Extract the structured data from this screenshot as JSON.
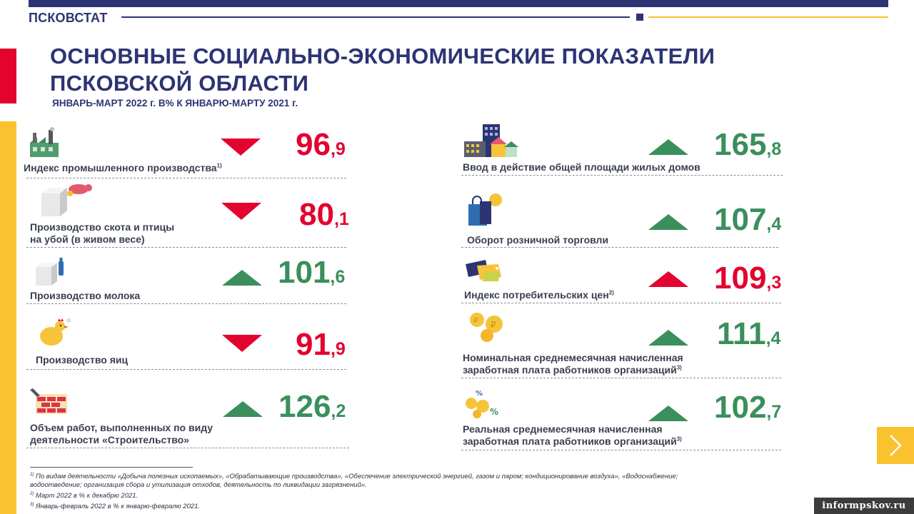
{
  "header": {
    "brand": "ПСКОВСТАТ",
    "title_line1": "ОСНОВНЫЕ  СОЦИАЛЬНО-ЭКОНОМИЧЕСКИЕ  ПОКАЗАТЕЛИ",
    "title_line2": "ПСКОВСКОЙ ОБЛАСТИ",
    "subtitle": "ЯНВАРЬ-МАРТ 2022 г.   В% К  ЯНВАРЮ-МАРТУ 2021 г."
  },
  "colors": {
    "navy": "#2d3474",
    "red": "#e2032f",
    "green": "#3a8f5c",
    "yellow": "#f9c22e"
  },
  "left": [
    {
      "icon": "factory-icon",
      "line1": "Индекс промышленного производства",
      "line2": "",
      "note": "1)",
      "int": "96",
      "dec": ",9",
      "trend": "down",
      "color": "red"
    },
    {
      "icon": "livestock-icon",
      "line1": "Производство скота и птицы",
      "line2": "на убой (в живом весе)",
      "note": "",
      "int": "80",
      "dec": ",1",
      "trend": "down",
      "color": "red"
    },
    {
      "icon": "milk-icon",
      "line1": "Производство молока",
      "line2": "",
      "note": "",
      "int": "101",
      "dec": ",6",
      "trend": "up",
      "color": "green"
    },
    {
      "icon": "hen-icon",
      "line1": "Производство яиц",
      "line2": "",
      "note": "",
      "int": "91",
      "dec": ",9",
      "trend": "down",
      "color": "red"
    },
    {
      "icon": "bricks-icon",
      "line1": "Объем работ, выполненных по виду",
      "line2": "деятельности «Строительство»",
      "note": "",
      "int": "126",
      "dec": ",2",
      "trend": "up",
      "color": "green"
    }
  ],
  "right": [
    {
      "icon": "houses-icon",
      "line1": "Ввод в действие общей площади жилых домов",
      "line2": "",
      "note": "",
      "int": "165",
      "dec": ",8",
      "trend": "up",
      "color": "green"
    },
    {
      "icon": "shopping-icon",
      "line1": "Оборот розничной торговли",
      "line2": "",
      "note": "",
      "int": "107",
      "dec": ",4",
      "trend": "up",
      "color": "green"
    },
    {
      "icon": "price-tags-icon",
      "line1": "Индекс потребительских цен",
      "line2": "",
      "note": "2)",
      "int": "109",
      "dec": ",3",
      "trend": "up",
      "color": "red"
    },
    {
      "icon": "ruble-coins-icon",
      "line1": "Номинальная среднемесячная начисленная",
      "line2": "заработная плата  работников организаций",
      "note": "3)",
      "int": "111",
      "dec": ",4",
      "trend": "up",
      "color": "green"
    },
    {
      "icon": "percent-coins-icon",
      "line1": "Реальная среднемесячная  начисленная",
      "line2": "заработная плата  работников организаций",
      "note": "3)",
      "int": "102",
      "dec": ",7",
      "trend": "up",
      "color": "green"
    }
  ],
  "footnotes": {
    "n1_mark": "1)",
    "n1_a": " По видам деятельности «Добыча полезных ископаемых», «Обрабатывающие производства», «Обеспечение электрической энергией, газом и паром; кондиционирование воздуха», «Водоснабжение;",
    "n1_b": "водоотведение; организация сбора и утилизация отходов, деятельность по ликвидации загрязнений».",
    "n2_mark": "2)",
    "n2": " Март 2022 в % к декабрю 2021.",
    "n3_mark": "3)",
    "n3": " Январь-февраль 2022 в % к январю-февралю 2021."
  },
  "watermark": "informpskov.ru"
}
